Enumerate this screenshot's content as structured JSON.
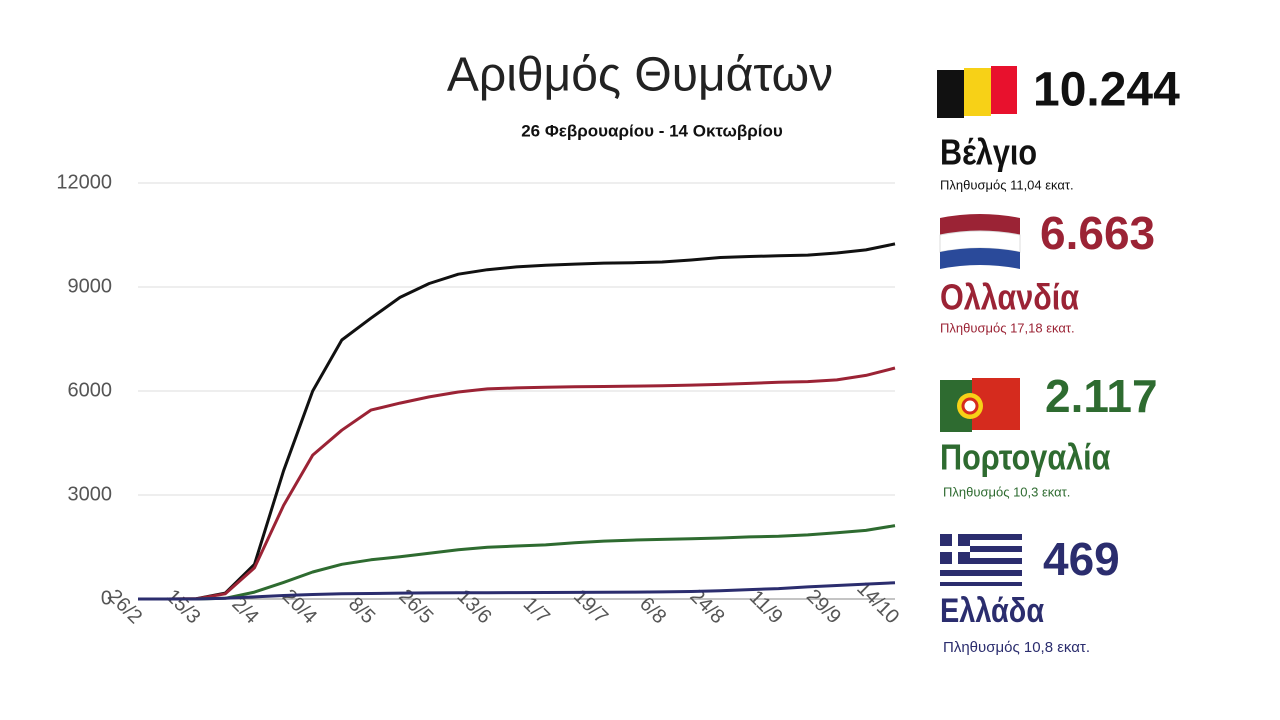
{
  "chart_data": {
    "type": "line",
    "title": "Αριθμός Θυμάτων",
    "subtitle": "26 Φεβρουαρίου - 14 Οκτωβρίου",
    "categories": [
      "26/2",
      null,
      "15/3",
      null,
      "2/4",
      null,
      "20/4",
      null,
      "8/5",
      null,
      "26/5",
      null,
      "13/6",
      null,
      "1/7",
      null,
      "19/7",
      null,
      "6/8",
      null,
      "24/8",
      null,
      "11/9",
      null,
      "29/9",
      null,
      "14/10"
    ],
    "ylim": [
      0,
      12000
    ],
    "yticks": [
      0,
      3000,
      6000,
      9000,
      12000
    ],
    "grid": true,
    "series": [
      {
        "name": "Βέλγιο",
        "color": "#111111",
        "values": [
          0,
          0,
          10,
          170,
          1000,
          3700,
          6000,
          7470,
          8100,
          8700,
          9100,
          9370,
          9500,
          9580,
          9630,
          9660,
          9690,
          9700,
          9720,
          9780,
          9850,
          9880,
          9900,
          9920,
          9980,
          10070,
          10244
        ]
      },
      {
        "name": "Ολλανδία",
        "color": "#9b2335",
        "values": [
          0,
          0,
          5,
          150,
          900,
          2700,
          4150,
          4870,
          5450,
          5650,
          5830,
          5970,
          6060,
          6090,
          6110,
          6120,
          6130,
          6140,
          6150,
          6170,
          6190,
          6220,
          6250,
          6270,
          6320,
          6450,
          6663
        ]
      },
      {
        "name": "Πορτογαλία",
        "color": "#2e6b30",
        "values": [
          0,
          0,
          0,
          20,
          200,
          480,
          780,
          1000,
          1130,
          1220,
          1320,
          1420,
          1490,
          1530,
          1560,
          1620,
          1670,
          1700,
          1720,
          1740,
          1760,
          1790,
          1810,
          1850,
          1910,
          1980,
          2117
        ]
      },
      {
        "name": "Ελλάδα",
        "color": "#2b2d6e",
        "values": [
          0,
          0,
          0,
          20,
          60,
          100,
          130,
          150,
          160,
          170,
          175,
          180,
          183,
          185,
          187,
          190,
          195,
          200,
          205,
          215,
          240,
          270,
          300,
          350,
          390,
          430,
          469
        ]
      }
    ]
  },
  "panel": [
    {
      "total": "10.244",
      "population": "Πληθυσμός 11,04 εκατ."
    },
    {
      "total": "6.663",
      "population": "Πληθυσμός 17,18 εκατ."
    },
    {
      "total": "2.117",
      "population": "Πληθυσμός 10,3 εκατ."
    },
    {
      "total": "469",
      "population": "Πληθυσμός 10,8 εκατ."
    }
  ]
}
